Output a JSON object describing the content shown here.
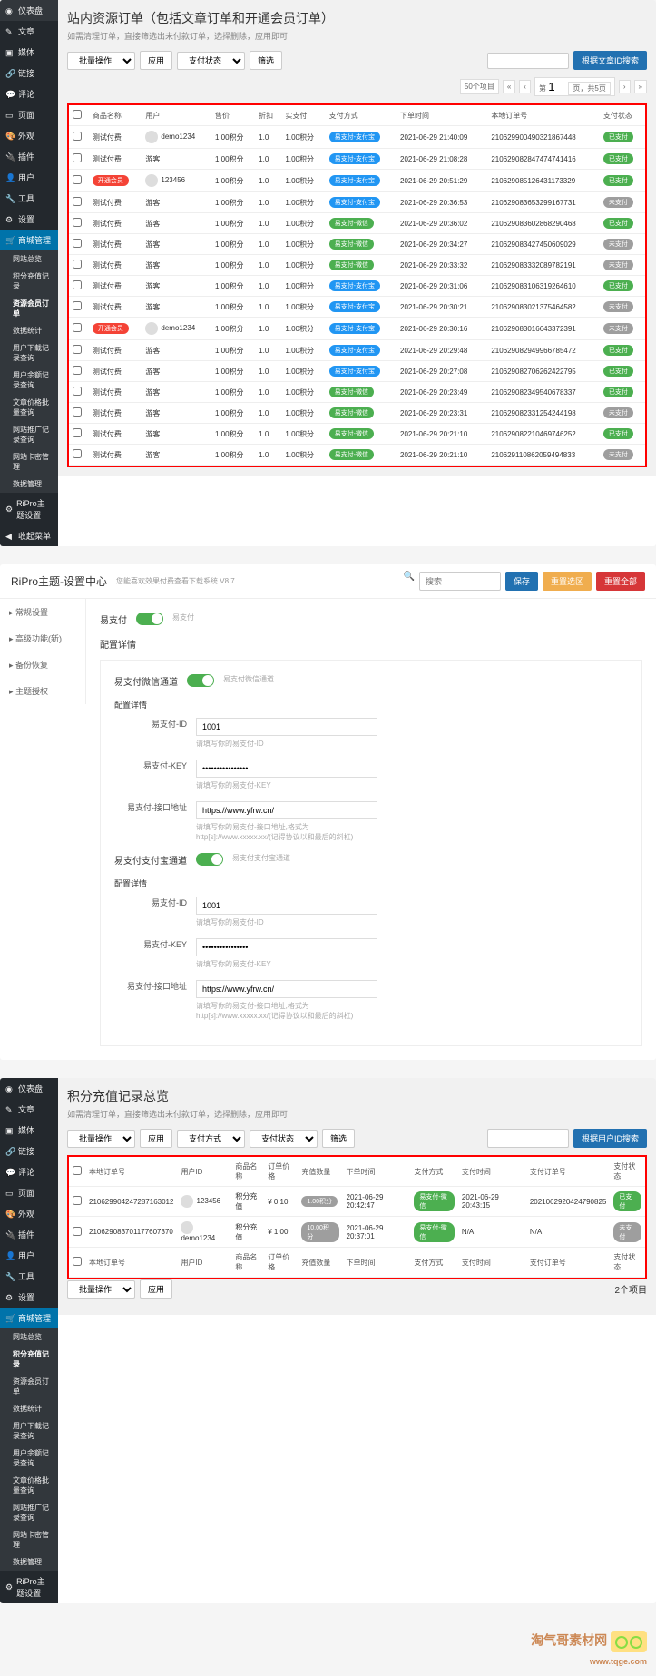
{
  "p1": {
    "title": "站内资源订单（包括文章订单和开通会员订单）",
    "sub": "如需清理订单，直接筛选出未付款订单，选择删除，应用即可",
    "sidebar": [
      {
        "l": "仪表盘",
        "i": "◉"
      },
      {
        "l": "文章",
        "i": "✎"
      },
      {
        "l": "媒体",
        "i": "▣"
      },
      {
        "l": "链接",
        "i": "🔗"
      },
      {
        "l": "评论",
        "i": "💬"
      },
      {
        "l": "页面",
        "i": "▭"
      },
      {
        "l": "外观",
        "i": "🎨"
      },
      {
        "l": "插件",
        "i": "🔌"
      },
      {
        "l": "用户",
        "i": "👤"
      },
      {
        "l": "工具",
        "i": "🔧"
      },
      {
        "l": "设置",
        "i": "⚙"
      }
    ],
    "shop": {
      "label": "商城管理",
      "items": [
        "网站总览",
        "积分充值记录",
        "资源会员订单",
        "数据统计",
        "用户下载记录查询",
        "用户余额记录查询",
        "文章价格批量查询",
        "网站推广记录查询",
        "网站卡密管理",
        "数据管理"
      ]
    },
    "ripro": "RiPro主题设置",
    "collapse": "收起菜单",
    "batch": "批量操作",
    "apply": "应用",
    "payStatus": "支付状态",
    "filter": "筛选",
    "searchBtn": "根据文章ID搜索",
    "itemCount": "50个项目",
    "pageInfo": "页，共5页",
    "cols": [
      "商品名称",
      "用户",
      "售价",
      "折扣",
      "实支付",
      "支付方式",
      "下单时间",
      "本地订单号",
      "支付状态"
    ],
    "rows": [
      {
        "n": "测试付费",
        "u": "demo1234",
        "av": 1,
        "p": "1.00积分",
        "d": "1.0",
        "a": "1.00积分",
        "m": "易支付-支付宝",
        "mc": "b-blue",
        "t": "2021-06-29 21:40:09",
        "o": "210629900490321867448",
        "s": "已支付",
        "sc": "b-green"
      },
      {
        "n": "测试付费",
        "u": "游客",
        "p": "1.00积分",
        "d": "1.0",
        "a": "1.00积分",
        "m": "易支付-支付宝",
        "mc": "b-blue",
        "t": "2021-06-29 21:08:28",
        "o": "210629082847474741416",
        "s": "已支付",
        "sc": "b-green"
      },
      {
        "n": "开通会员",
        "nc": "b-red",
        "u": "123456",
        "av": 1,
        "p": "1.00积分",
        "d": "1.0",
        "a": "1.00积分",
        "m": "易支付-支付宝",
        "mc": "b-blue",
        "t": "2021-06-29 20:51:29",
        "o": "210629085126431173329",
        "s": "已支付",
        "sc": "b-green"
      },
      {
        "n": "测试付费",
        "u": "游客",
        "p": "1.00积分",
        "d": "1.0",
        "a": "1.00积分",
        "m": "易支付-支付宝",
        "mc": "b-blue",
        "t": "2021-06-29 20:36:53",
        "o": "210629083653299167731",
        "s": "未支付",
        "sc": "b-gray"
      },
      {
        "n": "测试付费",
        "u": "游客",
        "p": "1.00积分",
        "d": "1.0",
        "a": "1.00积分",
        "m": "易支付-微信",
        "mc": "b-green",
        "t": "2021-06-29 20:36:02",
        "o": "210629083602868290468",
        "s": "已支付",
        "sc": "b-green"
      },
      {
        "n": "测试付费",
        "u": "游客",
        "p": "1.00积分",
        "d": "1.0",
        "a": "1.00积分",
        "m": "易支付-微信",
        "mc": "b-green",
        "t": "2021-06-29 20:34:27",
        "o": "210629083427450609029",
        "s": "未支付",
        "sc": "b-gray"
      },
      {
        "n": "测试付费",
        "u": "游客",
        "p": "1.00积分",
        "d": "1.0",
        "a": "1.00积分",
        "m": "易支付-微信",
        "mc": "b-green",
        "t": "2021-06-29 20:33:32",
        "o": "210629083332089782191",
        "s": "未支付",
        "sc": "b-gray"
      },
      {
        "n": "测试付费",
        "u": "游客",
        "p": "1.00积分",
        "d": "1.0",
        "a": "1.00积分",
        "m": "易支付-支付宝",
        "mc": "b-blue",
        "t": "2021-06-29 20:31:06",
        "o": "210629083106319264610",
        "s": "已支付",
        "sc": "b-green"
      },
      {
        "n": "测试付费",
        "u": "游客",
        "p": "1.00积分",
        "d": "1.0",
        "a": "1.00积分",
        "m": "易支付-支付宝",
        "mc": "b-blue",
        "t": "2021-06-29 20:30:21",
        "o": "210629083021375464582",
        "s": "未支付",
        "sc": "b-gray"
      },
      {
        "n": "开通会员",
        "nc": "b-red",
        "u": "demo1234",
        "av": 1,
        "p": "1.00积分",
        "d": "1.0",
        "a": "1.00积分",
        "m": "易支付-支付宝",
        "mc": "b-blue",
        "t": "2021-06-29 20:30:16",
        "o": "210629083016643372391",
        "s": "未支付",
        "sc": "b-gray"
      },
      {
        "n": "测试付费",
        "u": "游客",
        "p": "1.00积分",
        "d": "1.0",
        "a": "1.00积分",
        "m": "易支付-支付宝",
        "mc": "b-blue",
        "t": "2021-06-29 20:29:48",
        "o": "210629082949966785472",
        "s": "已支付",
        "sc": "b-green"
      },
      {
        "n": "测试付费",
        "u": "游客",
        "p": "1.00积分",
        "d": "1.0",
        "a": "1.00积分",
        "m": "易支付-支付宝",
        "mc": "b-blue",
        "t": "2021-06-29 20:27:08",
        "o": "210629082706262422795",
        "s": "已支付",
        "sc": "b-green"
      },
      {
        "n": "测试付费",
        "u": "游客",
        "p": "1.00积分",
        "d": "1.0",
        "a": "1.00积分",
        "m": "易支付-微信",
        "mc": "b-green",
        "t": "2021-06-29 20:23:49",
        "o": "210629082349540678337",
        "s": "已支付",
        "sc": "b-green"
      },
      {
        "n": "测试付费",
        "u": "游客",
        "p": "1.00积分",
        "d": "1.0",
        "a": "1.00积分",
        "m": "易支付-微信",
        "mc": "b-green",
        "t": "2021-06-29 20:23:31",
        "o": "210629082331254244198",
        "s": "未支付",
        "sc": "b-gray"
      },
      {
        "n": "测试付费",
        "u": "游客",
        "p": "1.00积分",
        "d": "1.0",
        "a": "1.00积分",
        "m": "易支付-微信",
        "mc": "b-green",
        "t": "2021-06-29 20:21:10",
        "o": "210629082210469746252",
        "s": "已支付",
        "sc": "b-green"
      },
      {
        "n": "测试付费",
        "u": "游客",
        "p": "1.00积分",
        "d": "1.0",
        "a": "1.00积分",
        "m": "易支付-微信",
        "mc": "b-green",
        "t": "2021-06-29 20:21:10",
        "o": "210629110862059494833",
        "s": "未支付",
        "sc": "b-gray"
      }
    ]
  },
  "p2": {
    "title": "RiPro主题-设置中心",
    "sub": "您能喜欢效果付费查看下载系统 V8.7",
    "search": "搜索",
    "save": "保存",
    "reset": "重置选区",
    "resetAll": "重置全部",
    "tabs": [
      "常规设置",
      "高级功能(新)",
      "备份恢复",
      "主题授权"
    ],
    "epay": "易支付",
    "detail": "配置详情",
    "wx": {
      "title": "易支付微信通道",
      "id": "易支付-ID",
      "idv": "1001",
      "idh": "请填写你的易支付-ID",
      "key": "易支付-KEY",
      "keyv": "••••••••••••••••",
      "keyh": "请填写你的易支付-KEY",
      "url": "易支付-接口地址",
      "urlv": "https://www.yfrw.cn/",
      "urlh": "请填写你的易支付-接口地址,格式为 http[s]://www.xxxxx.xx/(记得协议以和最后的斜杠)"
    },
    "ali": {
      "title": "易支付支付宝通道",
      "id": "易支付-ID",
      "idv": "1001",
      "idh": "请填写你的易支付-ID",
      "key": "易支付-KEY",
      "keyv": "••••••••••••••••",
      "keyh": "请填写你的易支付-KEY",
      "url": "易支付-接口地址",
      "urlv": "https://www.yfrw.cn/",
      "urlh": "请填写你的易支付-接口地址,格式为 http[s]://www.xxxxx.xx/(记得协议以和最后的斜杠)"
    }
  },
  "p3": {
    "title": "积分充值记录总览",
    "sub": "如需清理订单，直接筛选出未付款订单，选择删除，应用即可",
    "batch": "批量操作",
    "apply": "应用",
    "payMethod": "支付方式",
    "payStatus": "支付状态",
    "filter": "筛选",
    "searchBtn": "根据用户ID搜索",
    "itemCount": "2个项目",
    "cols": [
      "本地订单号",
      "用户ID",
      "商品名称",
      "订单价格",
      "充值数量",
      "下单时间",
      "支付方式",
      "支付时间",
      "支付订单号",
      "支付状态"
    ],
    "rows": [
      {
        "o": "210629904247287163012",
        "u": "123456",
        "n": "积分充值",
        "p": "¥ 0.10",
        "q": "1.00积分",
        "qc": "b-gray",
        "t": "2021-06-29 20:42:47",
        "m": "易支付-微信",
        "mc": "b-green",
        "pt": "2021-06-29 20:43:15",
        "po": "2021062920424790825",
        "s": "已支付",
        "sc": "b-green"
      },
      {
        "o": "210629083701177607370",
        "u": "demo1234",
        "n": "积分充值",
        "p": "¥ 1.00",
        "q": "10.00积分",
        "qc": "b-gray",
        "t": "2021-06-29 20:37:01",
        "m": "易支付-微信",
        "mc": "b-green",
        "pt": "N/A",
        "po": "N/A",
        "s": "未支付",
        "sc": "b-gray"
      }
    ],
    "shop": {
      "label": "商城管理",
      "items": [
        "网站总览",
        "积分充值记录",
        "资源会员订单",
        "数据统计",
        "用户下载记录查询",
        "用户余额记录查询",
        "文章价格批量查询",
        "网站推广记录查询",
        "网站卡密管理",
        "数据管理"
      ]
    }
  },
  "wm": {
    "t": "淘气哥素材网",
    "s": "www.tqge.com"
  }
}
